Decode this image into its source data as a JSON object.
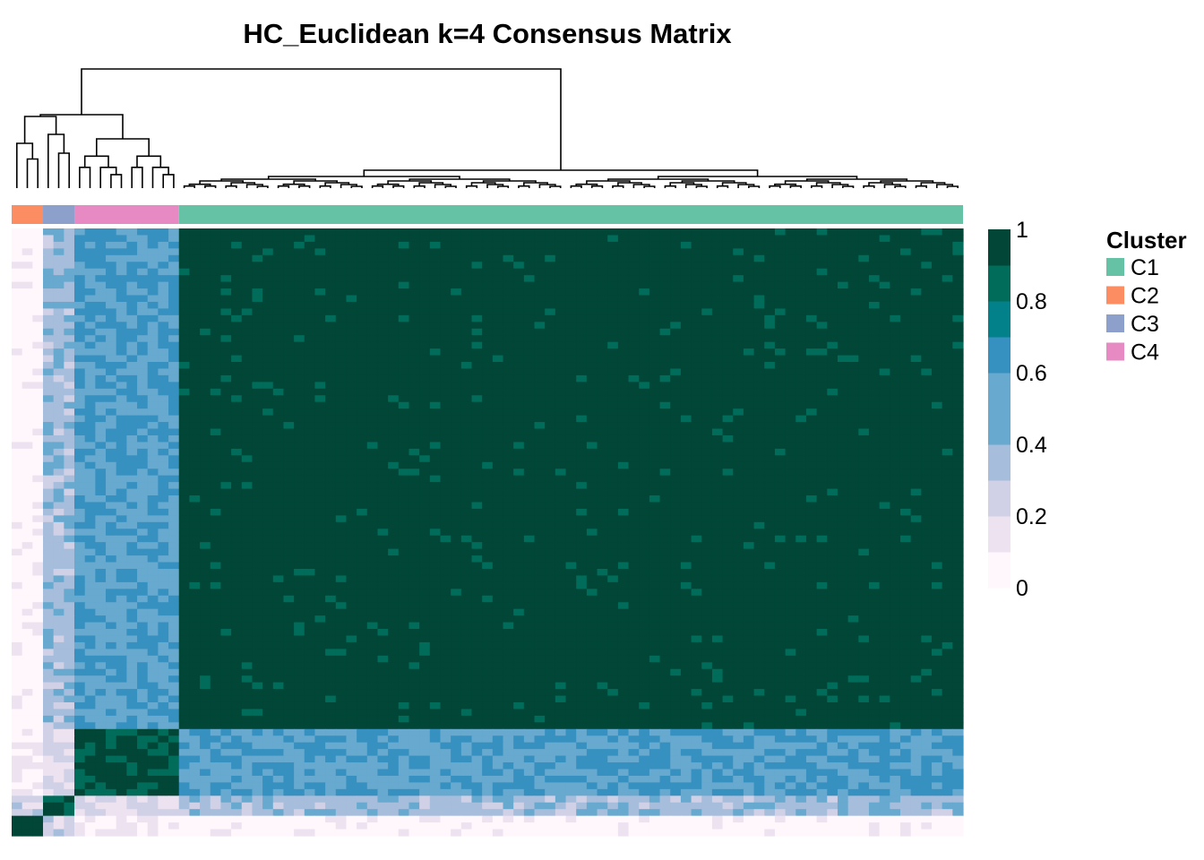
{
  "chart_data": {
    "type": "heatmap",
    "title": "HC_Euclidean k=4 Consensus Matrix",
    "n_samples": 91,
    "cluster_order": [
      "C2",
      "C3",
      "C4",
      "C1"
    ],
    "cluster_sizes": [
      3,
      3,
      10,
      75
    ],
    "within_cluster_consensus": {
      "C1": 0.97,
      "C2": 0.98,
      "C3": 0.9,
      "C4": 0.9
    },
    "between_cluster_consensus": {
      "C1-C4": 0.55,
      "C1-C3": 0.4,
      "C1-C2": 0.05,
      "C3-C4": 0.25,
      "C2-C4": 0.08,
      "C2-C3": 0.25
    },
    "colorbar": {
      "ticks": [
        "0",
        "0.2",
        "0.4",
        "0.6",
        "0.8",
        "1"
      ],
      "tick_values": [
        0,
        0.2,
        0.4,
        0.6,
        0.8,
        1
      ],
      "range": [
        0,
        1
      ],
      "colors": [
        "#fff7fb",
        "#ece2f0",
        "#d0d1e6",
        "#a6bddb",
        "#67a9cf",
        "#3690c0",
        "#02818a",
        "#016c59",
        "#014636"
      ]
    },
    "legend": {
      "title": "Cluster",
      "position": "right",
      "items": [
        {
          "label": "C1",
          "color": "#66c2a5"
        },
        {
          "label": "C2",
          "color": "#fc8d62"
        },
        {
          "label": "C3",
          "color": "#8da0cb"
        },
        {
          "label": "C4",
          "color": "#e78ac3"
        }
      ]
    },
    "dendrogram": "top"
  }
}
